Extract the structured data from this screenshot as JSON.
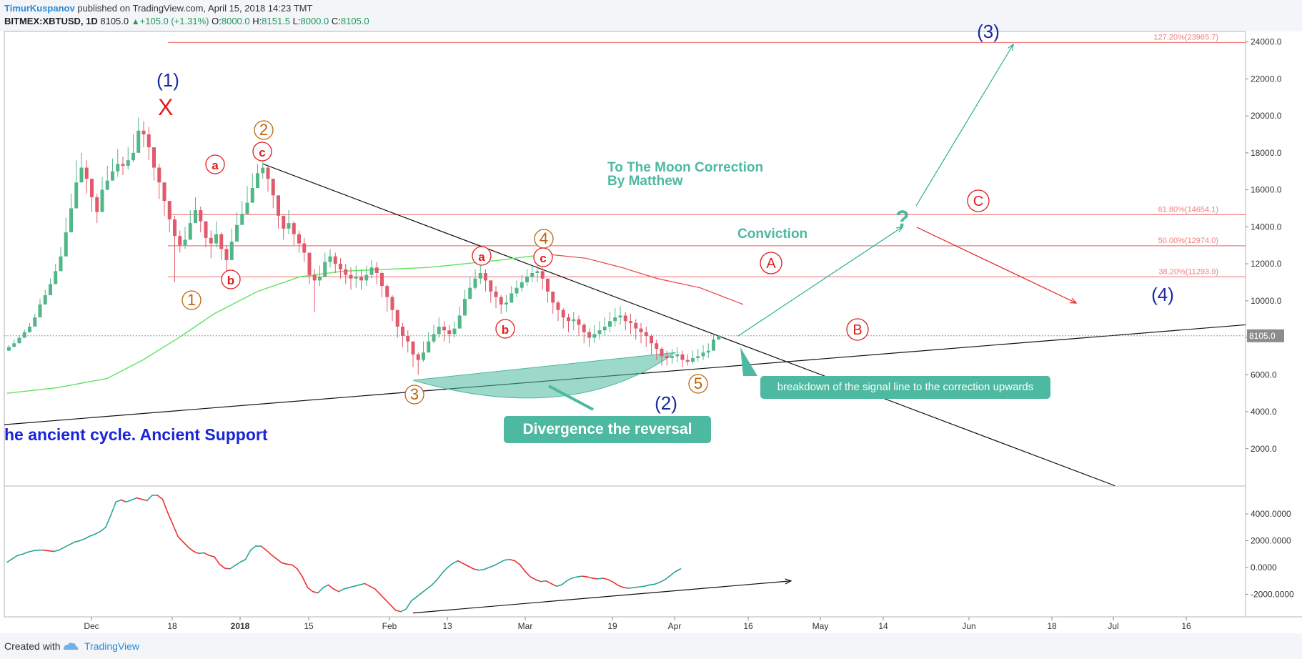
{
  "header": {
    "author": "TimurKuspanov",
    "published_text": "published on TradingView.com, April 15, 2018 14:23 TMT",
    "symbol": "BITMEX:XBTUSD, 1D",
    "price": "8105.0",
    "change_arrow": "▲",
    "change": "+105.0 (+1.31%)",
    "ohlc": [
      {
        "label": "O:",
        "value": "8000.0"
      },
      {
        "label": "H:",
        "value": "8151.5"
      },
      {
        "label": "L:",
        "value": "8000.0"
      },
      {
        "label": "C:",
        "value": "8105.0"
      }
    ]
  },
  "footer": {
    "created_with": "Created with",
    "brand": "TradingView"
  },
  "colors": {
    "up": "#1e9c58",
    "candle_up": "#52b788",
    "candle_down": "#e05a6b",
    "ma": "#5fe35f",
    "ma_red": "#ee4040",
    "fib": "#f07f7f",
    "annotation_teal": "#4db9a0",
    "wave_blue": "#1a2aa0",
    "wave_orange": "#b8660b",
    "wave_red": "#e01d1d",
    "ancient_text": "#1a24d8"
  },
  "chart_data": [
    {
      "type": "candlestick",
      "title": "",
      "xlabel": "",
      "ylabel": "",
      "yticks": [
        "24000.0",
        "22000.0",
        "20000.0",
        "18000.0",
        "16000.0",
        "14000.0",
        "12000.0",
        "10000.0",
        "8000.0",
        "6000.0",
        "4000.0",
        "2000.0"
      ],
      "ylim": [
        0,
        24500
      ],
      "xticks": [
        "Dec",
        "18",
        "2018",
        "15",
        "Feb",
        "13",
        "Mar",
        "19",
        "Apr",
        "16",
        "May",
        "14",
        "Jun",
        "18",
        "Jul",
        "16"
      ],
      "last_price_label": "8105.0",
      "fib_levels": [
        {
          "label": "127.20%(23965.7)",
          "value": 23965.7
        },
        {
          "label": "61.80%(14654.1)",
          "value": 14654.1
        },
        {
          "label": "50.00%(12974.0)",
          "value": 12974.0
        },
        {
          "label": "38.20%(11293.9)",
          "value": 11293.9
        }
      ],
      "close_series": [
        7500,
        7700,
        8000,
        8300,
        8600,
        9100,
        9800,
        10300,
        10900,
        11600,
        12400,
        13700,
        15000,
        16400,
        17200,
        16600,
        15600,
        14800,
        16000,
        16500,
        17000,
        17400,
        17300,
        17600,
        18000,
        19200,
        19000,
        18300,
        17200,
        16400,
        15400,
        14400,
        13500,
        13000,
        13300,
        14200,
        14900,
        14300,
        13400,
        13100,
        13600,
        12800,
        12200,
        13200,
        14100,
        14700,
        15300,
        16100,
        16900,
        17200,
        16600,
        15700,
        14600,
        13900,
        14200,
        13600,
        13100,
        12600,
        11400,
        11100,
        11300,
        12100,
        12400,
        12000,
        11700,
        11400,
        11200,
        11300,
        11100,
        11400,
        11800,
        11500,
        10800,
        10200,
        9500,
        8600,
        8100,
        7800,
        7100,
        6800,
        7200,
        7800,
        8200,
        8600,
        8400,
        8200,
        8500,
        9200,
        10100,
        10700,
        11200,
        11500,
        11100,
        10500,
        10200,
        9800,
        9900,
        10400,
        10700,
        11000,
        11300,
        11500,
        11600,
        11200,
        10500,
        9900,
        9500,
        9100,
        8900,
        9000,
        8700,
        8300,
        8000,
        8200,
        8400,
        8600,
        8900,
        9100,
        9200,
        8900,
        8800,
        8500,
        8300,
        8100,
        7700,
        7400,
        7000,
        6900,
        7000,
        7100,
        6800,
        6700,
        6900,
        7000,
        7200,
        7300,
        7900,
        8105
      ],
      "candle_highs": [
        7600,
        7900,
        8150,
        8450,
        8800,
        9300,
        10100,
        10600,
        11200,
        12000,
        12900,
        14500,
        15800,
        17600,
        18000,
        17600,
        16600,
        15800,
        16700,
        17300,
        17700,
        18200,
        17800,
        18300,
        19000,
        19900,
        19700,
        19400,
        18300,
        17400,
        16300,
        15400,
        14600,
        13800,
        14000,
        14900,
        15600,
        15100,
        14300,
        13800,
        14300,
        13700,
        13000,
        13900,
        14800,
        15400,
        16200,
        16900,
        17400,
        17600,
        17300,
        16600,
        15600,
        14600,
        14900,
        14300,
        13800,
        13400,
        12600,
        11700,
        11900,
        12600,
        12800,
        12600,
        12300,
        12000,
        11800,
        11900,
        11700,
        11900,
        12200,
        12100,
        11600,
        10900,
        10300,
        9300,
        8800,
        8400,
        7700,
        7200,
        7800,
        8300,
        8700,
        9100,
        8900,
        8700,
        8900,
        9700,
        10600,
        11300,
        11700,
        11900,
        11700,
        11100,
        10800,
        10300,
        10300,
        10800,
        11100,
        11400,
        11700,
        11900,
        12100,
        11800,
        11200,
        10500,
        10000,
        9600,
        9300,
        9400,
        9200,
        8800,
        8500,
        8700,
        8900,
        9100,
        9400,
        9600,
        9700,
        9400,
        9300,
        9000,
        8800,
        8600,
        8200,
        7900,
        7500,
        7300,
        7400,
        7500,
        7300,
        7100,
        7300,
        7400,
        7600,
        7700,
        8200,
        8151.5
      ],
      "candle_lows": [
        7300,
        7500,
        7800,
        8000,
        8300,
        8800,
        9400,
        9900,
        10500,
        11300,
        12000,
        13200,
        14400,
        15600,
        16400,
        15800,
        14800,
        14200,
        15400,
        16000,
        16500,
        16700,
        16800,
        17100,
        17500,
        18600,
        18300,
        17600,
        16500,
        15500,
        14600,
        13700,
        11000,
        12600,
        12800,
        13600,
        14300,
        13700,
        12900,
        12300,
        12900,
        12200,
        11600,
        12700,
        13500,
        14200,
        14700,
        15500,
        16300,
        16600,
        15900,
        15000,
        13900,
        13300,
        13600,
        13000,
        12600,
        12100,
        10900,
        9400,
        10800,
        11400,
        11800,
        11500,
        11200,
        10900,
        10600,
        10700,
        10600,
        10800,
        11200,
        10900,
        10200,
        9400,
        8900,
        8000,
        7500,
        7200,
        6400,
        6000,
        6700,
        7300,
        7700,
        8000,
        7800,
        7700,
        8000,
        8600,
        9500,
        10100,
        10600,
        10900,
        10500,
        9900,
        9600,
        9300,
        9400,
        9900,
        10200,
        10500,
        10800,
        11000,
        11000,
        10600,
        9900,
        9300,
        8900,
        8500,
        8300,
        8400,
        8100,
        7700,
        7500,
        7700,
        7900,
        8100,
        8300,
        8600,
        8700,
        8400,
        8200,
        7900,
        7700,
        7500,
        7100,
        6800,
        6500,
        6500,
        6600,
        6700,
        6400,
        6500,
        6600,
        6700,
        6800,
        6900,
        7400,
        8000
      ]
    },
    {
      "type": "line",
      "title": "",
      "yticks": [
        "4000.0000",
        "2000.0000",
        "0.0000",
        "-2000.0000"
      ],
      "ylim": [
        -3500,
        6000
      ],
      "values": [
        400,
        650,
        900,
        1000,
        1150,
        1250,
        1300,
        1300,
        1250,
        1200,
        1300,
        1500,
        1700,
        1900,
        2000,
        2150,
        2350,
        2500,
        2700,
        3000,
        3900,
        4900,
        5050,
        4900,
        5050,
        5200,
        5100,
        5000,
        5400,
        5400,
        5100,
        4100,
        3200,
        2300,
        1900,
        1500,
        1200,
        1050,
        1100,
        900,
        800,
        250,
        -50,
        -100,
        150,
        400,
        600,
        1300,
        1600,
        1600,
        1300,
        950,
        650,
        350,
        250,
        200,
        -100,
        -700,
        -1500,
        -1800,
        -1900,
        -1500,
        -1300,
        -1600,
        -1800,
        -1600,
        -1500,
        -1400,
        -1300,
        -1200,
        -1400,
        -1600,
        -2000,
        -2400,
        -2800,
        -3200,
        -3300,
        -3100,
        -2500,
        -2200,
        -1900,
        -1600,
        -1300,
        -900,
        -400,
        0,
        300,
        500,
        300,
        100,
        -100,
        -200,
        -150,
        0,
        150,
        350,
        550,
        600,
        500,
        200,
        -300,
        -700,
        -900,
        -1050,
        -1000,
        -1200,
        -1400,
        -1300,
        -1000,
        -800,
        -700,
        -650,
        -700,
        -800,
        -850,
        -800,
        -900,
        -1100,
        -1350,
        -1500,
        -1550,
        -1500,
        -1450,
        -1400,
        -1300,
        -1250,
        -1100,
        -900,
        -600,
        -300,
        -100
      ],
      "colors": {
        "up": "#26a69a",
        "down": "#ee3030"
      }
    }
  ],
  "annotations": {
    "title_line1": "To The Moon Correction",
    "title_line2": "By Matthew",
    "conviction": "Conviction",
    "question": "?",
    "ancient": "he ancient cycle. Ancient Support",
    "breakdown": "breakdown of the signal line to the correction upwards",
    "divergence": "Divergence the reversal",
    "top_x": "X"
  },
  "wave_labels": [
    {
      "text": "(1)",
      "style": "plain",
      "color": "wave_blue"
    },
    {
      "text": "(2)",
      "style": "plain",
      "color": "wave_blue"
    },
    {
      "text": "(3)",
      "style": "plain",
      "color": "wave_blue"
    },
    {
      "text": "(4)",
      "style": "plain",
      "color": "wave_blue"
    },
    {
      "text": "1",
      "style": "circle",
      "color": "wave_orange"
    },
    {
      "text": "2",
      "style": "circle",
      "color": "wave_orange"
    },
    {
      "text": "3",
      "style": "circle",
      "color": "wave_orange"
    },
    {
      "text": "4",
      "style": "circle",
      "color": "wave_orange"
    },
    {
      "text": "5",
      "style": "circle",
      "color": "wave_orange"
    },
    {
      "text": "a",
      "style": "circle",
      "color": "wave_red"
    },
    {
      "text": "b",
      "style": "circle",
      "color": "wave_red"
    },
    {
      "text": "c",
      "style": "circle",
      "color": "wave_red"
    },
    {
      "text": "a",
      "style": "circle",
      "color": "wave_red"
    },
    {
      "text": "b",
      "style": "circle",
      "color": "wave_red"
    },
    {
      "text": "c",
      "style": "circle",
      "color": "wave_red"
    },
    {
      "text": "A",
      "style": "circle",
      "color": "wave_red"
    },
    {
      "text": "B",
      "style": "circle",
      "color": "wave_red"
    },
    {
      "text": "C",
      "style": "circle",
      "color": "wave_red"
    }
  ]
}
